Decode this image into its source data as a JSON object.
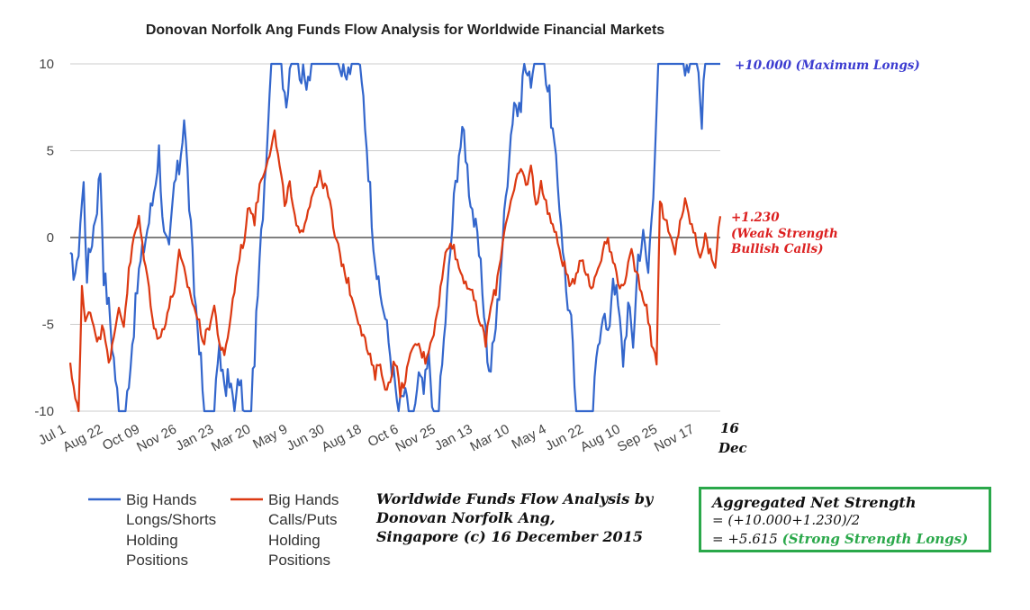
{
  "chart_data": {
    "type": "line",
    "title": "Donovan Norfolk Ang Funds Flow Analysis for Worldwide Financial Markets",
    "ylim": [
      -10,
      10
    ],
    "y_ticks": [
      "10",
      "5",
      "0",
      "-5",
      "-10"
    ],
    "x_ticks": [
      "Jul 1",
      "Aug 22",
      "Oct 09",
      "Nov 26",
      "Jan 23",
      "Mar 20",
      "May 9",
      "Jun 30",
      "Aug 18",
      "Oct 6",
      "Nov 25",
      "Jan 13",
      "Mar 10",
      "May 4",
      "Jun 22",
      "Aug 10",
      "Sep 25",
      "Nov 17"
    ],
    "end_date_label": [
      "16",
      "Dec"
    ],
    "legend_position": "bottom-left",
    "grid": "horizontal",
    "series": [
      {
        "name": "Big Hands Longs/Shorts Holding Positions",
        "name_lines": [
          "Big Hands",
          "Longs/Shorts",
          "Holding",
          "Positions"
        ],
        "color": "#3366cc",
        "keypoints": [
          [
            0,
            -1.5
          ],
          [
            4,
            -2
          ],
          [
            6,
            1
          ],
          [
            8,
            3
          ],
          [
            10,
            -2
          ],
          [
            13,
            0
          ],
          [
            16,
            2
          ],
          [
            18,
            4
          ],
          [
            20,
            -2
          ],
          [
            23,
            -4
          ],
          [
            26,
            -7
          ],
          [
            29,
            -10
          ],
          [
            33,
            -10
          ],
          [
            37,
            -6
          ],
          [
            41,
            -2
          ],
          [
            45,
            0
          ],
          [
            49,
            2
          ],
          [
            53,
            5
          ],
          [
            56,
            0
          ],
          [
            59,
            -1
          ],
          [
            62,
            3
          ],
          [
            65,
            4
          ],
          [
            68,
            7
          ],
          [
            71,
            2
          ],
          [
            74,
            -3
          ],
          [
            77,
            -6
          ],
          [
            80,
            -10
          ],
          [
            86,
            -10
          ],
          [
            89,
            -6
          ],
          [
            92,
            -9
          ],
          [
            95,
            -8
          ],
          [
            98,
            -10
          ],
          [
            101,
            -8
          ],
          [
            104,
            -10
          ],
          [
            108,
            -10
          ],
          [
            111,
            -5
          ],
          [
            114,
            0
          ],
          [
            117,
            5
          ],
          [
            120,
            10
          ],
          [
            126,
            10
          ],
          [
            129,
            8
          ],
          [
            132,
            10
          ],
          [
            136,
            10
          ],
          [
            140,
            9
          ],
          [
            144,
            10
          ],
          [
            160,
            10
          ],
          [
            164,
            9
          ],
          [
            168,
            10
          ],
          [
            172,
            10
          ],
          [
            175,
            8
          ],
          [
            178,
            4
          ],
          [
            181,
            0
          ],
          [
            184,
            -3
          ],
          [
            187,
            -4
          ],
          [
            190,
            -6
          ],
          [
            193,
            -8
          ],
          [
            196,
            -10
          ],
          [
            199,
            -9
          ],
          [
            202,
            -10
          ],
          [
            205,
            -10
          ],
          [
            208,
            -8
          ],
          [
            211,
            -9
          ],
          [
            214,
            -7
          ],
          [
            217,
            -10
          ],
          [
            220,
            -10
          ],
          [
            223,
            -6
          ],
          [
            226,
            -2
          ],
          [
            229,
            2
          ],
          [
            232,
            5
          ],
          [
            235,
            6
          ],
          [
            238,
            3
          ],
          [
            241,
            1
          ],
          [
            244,
            -1
          ],
          [
            247,
            -4
          ],
          [
            250,
            -8
          ],
          [
            253,
            -6
          ],
          [
            256,
            -3
          ],
          [
            259,
            1
          ],
          [
            262,
            5
          ],
          [
            265,
            8
          ],
          [
            268,
            7
          ],
          [
            271,
            10
          ],
          [
            274,
            9
          ],
          [
            277,
            10
          ],
          [
            283,
            10
          ],
          [
            286,
            8
          ],
          [
            290,
            4
          ],
          [
            293,
            1
          ],
          [
            296,
            -3
          ],
          [
            299,
            -5
          ],
          [
            302,
            -10
          ],
          [
            312,
            -10
          ],
          [
            315,
            -6
          ],
          [
            318,
            -4
          ],
          [
            321,
            -6
          ],
          [
            324,
            -2
          ],
          [
            327,
            -4
          ],
          [
            330,
            -7
          ],
          [
            333,
            -4
          ],
          [
            336,
            -6
          ],
          [
            339,
            -1
          ],
          [
            342,
            0
          ],
          [
            345,
            -2
          ],
          [
            348,
            3
          ],
          [
            351,
            10
          ],
          [
            365,
            10
          ],
          [
            367,
            9
          ],
          [
            370,
            10
          ],
          [
            374,
            10
          ],
          [
            377,
            7
          ],
          [
            379,
            10
          ],
          [
            385,
            10
          ],
          [
            388,
            10
          ]
        ]
      },
      {
        "name": "Big Hands Calls/Puts Holding Positions",
        "name_lines": [
          "Big Hands",
          "Calls/Puts",
          "Holding",
          "Positions"
        ],
        "color": "#dc3912",
        "keypoints": [
          [
            0,
            -7.5
          ],
          [
            3,
            -9
          ],
          [
            5,
            -10
          ],
          [
            7,
            -3
          ],
          [
            9,
            -5
          ],
          [
            11,
            -4
          ],
          [
            14,
            -5
          ],
          [
            17,
            -6
          ],
          [
            20,
            -5
          ],
          [
            23,
            -7
          ],
          [
            26,
            -6
          ],
          [
            29,
            -4
          ],
          [
            32,
            -5
          ],
          [
            35,
            -2
          ],
          [
            38,
            0
          ],
          [
            41,
            1
          ],
          [
            44,
            -1
          ],
          [
            47,
            -3
          ],
          [
            50,
            -5
          ],
          [
            53,
            -6
          ],
          [
            56,
            -5
          ],
          [
            59,
            -4
          ],
          [
            62,
            -3
          ],
          [
            65,
            -1
          ],
          [
            68,
            -2
          ],
          [
            71,
            -3
          ],
          [
            74,
            -4
          ],
          [
            77,
            -5
          ],
          [
            80,
            -6
          ],
          [
            83,
            -5
          ],
          [
            86,
            -4
          ],
          [
            89,
            -6
          ],
          [
            92,
            -7
          ],
          [
            95,
            -5
          ],
          [
            98,
            -3
          ],
          [
            101,
            -1
          ],
          [
            104,
            0
          ],
          [
            107,
            2
          ],
          [
            110,
            1
          ],
          [
            113,
            3
          ],
          [
            116,
            4
          ],
          [
            119,
            5
          ],
          [
            122,
            6
          ],
          [
            125,
            4
          ],
          [
            128,
            2
          ],
          [
            131,
            3
          ],
          [
            134,
            1
          ],
          [
            137,
            0
          ],
          [
            140,
            1
          ],
          [
            143,
            2
          ],
          [
            146,
            3
          ],
          [
            149,
            3.5
          ],
          [
            152,
            3
          ],
          [
            155,
            2
          ],
          [
            158,
            0
          ],
          [
            161,
            -1
          ],
          [
            164,
            -2
          ],
          [
            167,
            -3
          ],
          [
            170,
            -4
          ],
          [
            173,
            -5
          ],
          [
            176,
            -6
          ],
          [
            179,
            -7
          ],
          [
            182,
            -8
          ],
          [
            185,
            -7
          ],
          [
            188,
            -9
          ],
          [
            191,
            -8
          ],
          [
            194,
            -7
          ],
          [
            197,
            -9
          ],
          [
            200,
            -8
          ],
          [
            203,
            -7
          ],
          [
            206,
            -6
          ],
          [
            209,
            -6.5
          ],
          [
            212,
            -7
          ],
          [
            215,
            -6
          ],
          [
            218,
            -5
          ],
          [
            221,
            -3
          ],
          [
            224,
            -1
          ],
          [
            227,
            0
          ],
          [
            230,
            -1
          ],
          [
            233,
            -2
          ],
          [
            236,
            -2.5
          ],
          [
            239,
            -3
          ],
          [
            242,
            -4
          ],
          [
            245,
            -5
          ],
          [
            248,
            -6
          ],
          [
            251,
            -4
          ],
          [
            254,
            -3
          ],
          [
            257,
            -1
          ],
          [
            260,
            1
          ],
          [
            263,
            2
          ],
          [
            266,
            3
          ],
          [
            269,
            4
          ],
          [
            272,
            3
          ],
          [
            275,
            4
          ],
          [
            278,
            2
          ],
          [
            281,
            3
          ],
          [
            284,
            2
          ],
          [
            287,
            1
          ],
          [
            290,
            0
          ],
          [
            293,
            -1
          ],
          [
            296,
            -2
          ],
          [
            299,
            -3
          ],
          [
            302,
            -2
          ],
          [
            305,
            -1
          ],
          [
            308,
            -2
          ],
          [
            311,
            -3
          ],
          [
            314,
            -2
          ],
          [
            317,
            -1
          ],
          [
            320,
            0
          ],
          [
            323,
            -1
          ],
          [
            326,
            -2
          ],
          [
            329,
            -3
          ],
          [
            332,
            -2
          ],
          [
            335,
            -1
          ],
          [
            338,
            -2
          ],
          [
            341,
            -3
          ],
          [
            344,
            -4
          ],
          [
            347,
            -6
          ],
          [
            350,
            -7
          ],
          [
            352,
            2
          ],
          [
            355,
            1
          ],
          [
            358,
            0
          ],
          [
            361,
            -1
          ],
          [
            364,
            1
          ],
          [
            367,
            2
          ],
          [
            370,
            1
          ],
          [
            373,
            0
          ],
          [
            376,
            -1
          ],
          [
            379,
            0
          ],
          [
            382,
            -1
          ],
          [
            385,
            -1.5
          ],
          [
            388,
            1.23
          ]
        ]
      }
    ],
    "annotations": {
      "blue_end": "+10.000 (Maximum Longs)",
      "red_end_lines": [
        "+1.230",
        "(Weak Strength",
        "Bullish Calls)"
      ]
    }
  },
  "credit_lines": [
    "Worldwide Funds Flow Analysis by",
    "Donovan Norfolk Ang,",
    "Singapore (c) 16 December 2015"
  ],
  "net_strength": {
    "title": "Aggregated Net Strength",
    "formula": "= (+10.000+1.230)/2",
    "result_value": "= +5.615",
    "result_label": "(Strong Strength Longs)",
    "color_green": "#2aa84a"
  }
}
